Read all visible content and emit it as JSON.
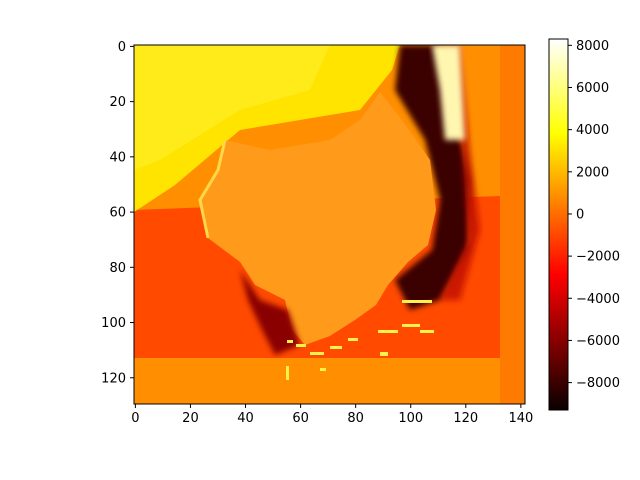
{
  "chart_data": {
    "type": "heatmap",
    "title": "",
    "xlabel": "",
    "ylabel": "",
    "xlim": [
      -0.5,
      141.5
    ],
    "ylim": [
      129.5,
      -0.5
    ],
    "x_ticks": [
      "0",
      "20",
      "40",
      "60",
      "80",
      "100",
      "120",
      "140"
    ],
    "y_ticks": [
      "0",
      "20",
      "40",
      "60",
      "80",
      "100",
      "120"
    ],
    "colormap": "hot",
    "color_range": [
      -9300,
      8300
    ],
    "colorbar_ticks": [
      "8000",
      "6000",
      "4000",
      "2000",
      "0",
      "−2000",
      "−4000",
      "−6000",
      "−8000"
    ],
    "grid": false,
    "regions": [
      {
        "name": "background-bottom",
        "approx_value": 800
      },
      {
        "name": "background-right",
        "approx_value": -1800
      },
      {
        "name": "upper-left-plateau",
        "approx_value": 2600
      },
      {
        "name": "central-blob",
        "approx_value": 700
      },
      {
        "name": "right-edge-trench",
        "approx_value": -8500
      },
      {
        "name": "top-right-peak",
        "approx_value": 7000
      }
    ]
  }
}
